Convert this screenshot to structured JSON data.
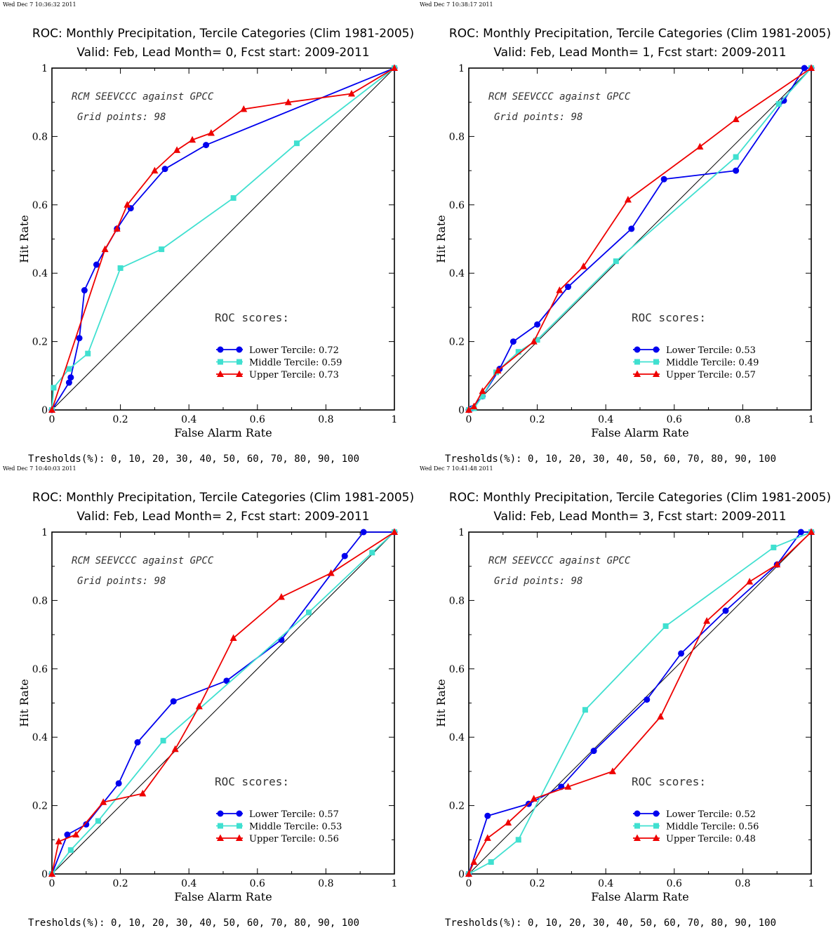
{
  "colors": {
    "lower": "#0000ee",
    "middle": "#40e0d0",
    "upper": "#ee0000",
    "axis": "#000000",
    "diagonal": "#000000"
  },
  "chart_data": [
    {
      "type": "line",
      "timestamp": "Wed Dec  7 10:36:32 2011",
      "title": "ROC: Monthly Precipitation, Tercile Categories (Clim 1981-2005)",
      "subtitle": "Valid: Feb, Lead Month= 0, Fcst start: 2009-2011",
      "xlabel": "False Alarm Rate",
      "ylabel": "Hit Rate",
      "xlim": [
        0,
        1
      ],
      "ylim": [
        0,
        1
      ],
      "xticks": [
        "0",
        "0.2",
        "0.4",
        "0.6",
        "0.8",
        "1"
      ],
      "yticks": [
        "0",
        "0.2",
        "0.4",
        "0.6",
        "0.8",
        "1"
      ],
      "annotation_line1": "RCM SEEVCCC against GPCC",
      "annotation_line2": "Grid points:   98",
      "scores_label": "ROC scores:",
      "thresholds": "Tresholds(%): 0, 10, 20, 30, 40, 50, 60, 70, 80, 90, 100",
      "series": [
        {
          "name": "Lower Tercile: 0.72",
          "marker": "circle",
          "x": [
            0,
            0.05,
            0.055,
            0.08,
            0.095,
            0.13,
            0.19,
            0.23,
            0.33,
            0.45,
            1.0
          ],
          "y": [
            0,
            0.08,
            0.095,
            0.21,
            0.35,
            0.425,
            0.53,
            0.59,
            0.705,
            0.775,
            1.0
          ]
        },
        {
          "name": "Middle Tercile: 0.59",
          "marker": "square",
          "x": [
            0,
            0.005,
            0.05,
            0.105,
            0.2,
            0.32,
            0.53,
            0.715,
            1.0
          ],
          "y": [
            0,
            0.065,
            0.12,
            0.165,
            0.415,
            0.47,
            0.62,
            0.78,
            1.0
          ]
        },
        {
          "name": "Upper Tercile: 0.73",
          "marker": "triangle",
          "x": [
            0,
            0.155,
            0.19,
            0.22,
            0.3,
            0.365,
            0.41,
            0.465,
            0.56,
            0.69,
            0.875,
            1.0
          ],
          "y": [
            0,
            0.47,
            0.53,
            0.6,
            0.7,
            0.76,
            0.79,
            0.81,
            0.88,
            0.9,
            0.925,
            1.0
          ]
        }
      ]
    },
    {
      "type": "line",
      "timestamp": "Wed Dec  7 10:38:17 2011",
      "title": "ROC: Monthly Precipitation, Tercile Categories (Clim 1981-2005)",
      "subtitle": "Valid: Feb, Lead Month= 1, Fcst start: 2009-2011",
      "xlabel": "False Alarm Rate",
      "ylabel": "Hit Rate",
      "xlim": [
        0,
        1
      ],
      "ylim": [
        0,
        1
      ],
      "xticks": [
        "0",
        "0.2",
        "0.4",
        "0.6",
        "0.8",
        "1"
      ],
      "yticks": [
        "0",
        "0.2",
        "0.4",
        "0.6",
        "0.8",
        "1"
      ],
      "annotation_line1": "RCM SEEVCCC against GPCC",
      "annotation_line2": "Grid points:   98",
      "scores_label": "ROC scores:",
      "thresholds": "Tresholds(%): 0, 10, 20, 30, 40, 50, 60, 70, 80, 90, 100",
      "series": [
        {
          "name": "Lower Tercile: 0.53",
          "marker": "circle",
          "x": [
            0,
            0.01,
            0.04,
            0.09,
            0.13,
            0.2,
            0.29,
            0.475,
            0.57,
            0.78,
            0.92,
            0.98,
            1.0
          ],
          "y": [
            0,
            0.005,
            0.04,
            0.12,
            0.2,
            0.25,
            0.36,
            0.53,
            0.675,
            0.7,
            0.905,
            1.0,
            1.0
          ]
        },
        {
          "name": "Middle Tercile: 0.49",
          "marker": "square",
          "x": [
            0,
            0.015,
            0.04,
            0.08,
            0.145,
            0.2,
            0.43,
            0.78,
            0.905,
            1.0
          ],
          "y": [
            0,
            0.005,
            0.04,
            0.11,
            0.17,
            0.205,
            0.435,
            0.74,
            0.895,
            1.0
          ]
        },
        {
          "name": "Upper Tercile: 0.57",
          "marker": "triangle",
          "x": [
            0,
            0.015,
            0.04,
            0.085,
            0.19,
            0.265,
            0.335,
            0.465,
            0.675,
            0.78,
            1.0
          ],
          "y": [
            0,
            0.01,
            0.055,
            0.115,
            0.2,
            0.35,
            0.42,
            0.615,
            0.77,
            0.85,
            1.0
          ]
        }
      ]
    },
    {
      "type": "line",
      "timestamp": "Wed Dec  7 10:40:03 2011",
      "title": "ROC: Monthly Precipitation, Tercile Categories (Clim 1981-2005)",
      "subtitle": "Valid: Feb, Lead Month= 2, Fcst start: 2009-2011",
      "xlabel": "False Alarm Rate",
      "ylabel": "Hit Rate",
      "xlim": [
        0,
        1
      ],
      "ylim": [
        0,
        1
      ],
      "xticks": [
        "0",
        "0.2",
        "0.4",
        "0.6",
        "0.8",
        "1"
      ],
      "yticks": [
        "0",
        "0.2",
        "0.4",
        "0.6",
        "0.8",
        "1"
      ],
      "annotation_line1": "RCM SEEVCCC against GPCC",
      "annotation_line2": "Grid points:   98",
      "scores_label": "ROC scores:",
      "thresholds": "Tresholds(%): 0, 10, 20, 30, 40, 50, 60, 70, 80, 90, 100",
      "series": [
        {
          "name": "Lower Tercile: 0.57",
          "marker": "circle",
          "x": [
            0,
            0.045,
            0.1,
            0.195,
            0.25,
            0.355,
            0.51,
            0.67,
            0.855,
            0.91,
            1.0
          ],
          "y": [
            0,
            0.115,
            0.145,
            0.265,
            0.385,
            0.505,
            0.565,
            0.685,
            0.93,
            1.0,
            1.0
          ]
        },
        {
          "name": "Middle Tercile: 0.53",
          "marker": "square",
          "x": [
            0,
            0.055,
            0.135,
            0.325,
            0.75,
            0.935,
            1.0
          ],
          "y": [
            0,
            0.07,
            0.155,
            0.39,
            0.765,
            0.94,
            1.0
          ]
        },
        {
          "name": "Upper Tercile: 0.56",
          "marker": "triangle",
          "x": [
            0,
            0.02,
            0.07,
            0.15,
            0.265,
            0.36,
            0.43,
            0.53,
            0.67,
            0.815,
            1.0
          ],
          "y": [
            0,
            0.095,
            0.115,
            0.21,
            0.235,
            0.365,
            0.49,
            0.69,
            0.81,
            0.88,
            1.0
          ]
        }
      ]
    },
    {
      "type": "line",
      "timestamp": "Wed Dec  7 10:41:48 2011",
      "title": "ROC: Monthly Precipitation, Tercile Categories (Clim 1981-2005)",
      "subtitle": "Valid: Feb, Lead Month= 3, Fcst start: 2009-2011",
      "xlabel": "False Alarm Rate",
      "ylabel": "Hit Rate",
      "xlim": [
        0,
        1
      ],
      "ylim": [
        0,
        1
      ],
      "xticks": [
        "0",
        "0.2",
        "0.4",
        "0.6",
        "0.8",
        "1"
      ],
      "yticks": [
        "0",
        "0.2",
        "0.4",
        "0.6",
        "0.8",
        "1"
      ],
      "annotation_line1": "RCM SEEVCCC against GPCC",
      "annotation_line2": "Grid points:   98",
      "scores_label": "ROC scores:",
      "thresholds": "Tresholds(%): 0, 10, 20, 30, 40, 50, 60, 70, 80, 90, 100",
      "series": [
        {
          "name": "Lower Tercile: 0.52",
          "marker": "circle",
          "x": [
            0,
            0.055,
            0.175,
            0.27,
            0.365,
            0.52,
            0.62,
            0.75,
            0.9,
            0.97,
            1.0
          ],
          "y": [
            0,
            0.17,
            0.205,
            0.255,
            0.36,
            0.51,
            0.645,
            0.77,
            0.905,
            1.0,
            1.0
          ]
        },
        {
          "name": "Middle Tercile: 0.56",
          "marker": "square",
          "x": [
            0,
            0.065,
            0.145,
            0.34,
            0.575,
            0.89,
            1.0
          ],
          "y": [
            0,
            0.035,
            0.1,
            0.48,
            0.725,
            0.955,
            1.0
          ]
        },
        {
          "name": "Upper Tercile: 0.48",
          "marker": "triangle",
          "x": [
            0,
            0.015,
            0.055,
            0.115,
            0.19,
            0.29,
            0.42,
            0.56,
            0.695,
            0.82,
            0.9,
            1.0
          ],
          "y": [
            0,
            0.035,
            0.105,
            0.15,
            0.22,
            0.255,
            0.3,
            0.46,
            0.74,
            0.855,
            0.905,
            1.0
          ]
        }
      ]
    }
  ]
}
